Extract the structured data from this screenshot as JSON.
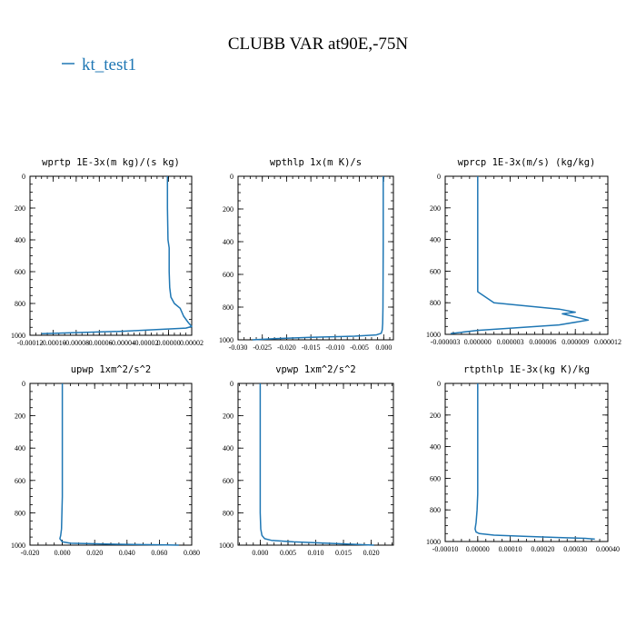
{
  "figure": {
    "title": "CLUBB VAR at90E,-75N",
    "legend": [
      {
        "label": "kt_test1",
        "color": "#1f77b4"
      }
    ]
  },
  "chart_data": [
    {
      "type": "line",
      "title": "wprtp  1E-3x(m kg)/(s kg)",
      "xlim": [
        -0.00012,
        2e-05
      ],
      "ylim": [
        1000,
        0
      ],
      "xticks": [
        -0.00012,
        -0.0001,
        -8e-05,
        -6e-05,
        -4e-05,
        -2e-05,
        0.0,
        2e-05
      ],
      "xtick_labels": [
        "-0.00012",
        "-0.00010",
        "-0.00008",
        "-0.00006",
        "-0.00004",
        "-0.00002",
        "0.00000",
        "0.00002"
      ],
      "yticks": [
        0,
        200,
        400,
        600,
        800,
        1000
      ],
      "ytick_labels": [
        "0",
        "200",
        "400",
        "600",
        "800",
        "1000"
      ],
      "series": [
        {
          "name": "kt_test1",
          "color": "#1f77b4",
          "x": [
            -1e-06,
            -1e-06,
            -5e-07,
            5e-07,
            5e-07,
            1e-06,
            2e-06,
            5e-06,
            1e-05,
            1.3e-05,
            1.7e-05,
            2e-05,
            1.5e-05,
            -4e-05,
            -0.00011
          ],
          "y": [
            0,
            200,
            400,
            450,
            600,
            700,
            760,
            800,
            830,
            880,
            920,
            945,
            955,
            975,
            990
          ]
        }
      ]
    },
    {
      "type": "line",
      "title": "wpthlp  1x(m K)/s",
      "xlim": [
        -0.03,
        0.002
      ],
      "ylim": [
        1000,
        0
      ],
      "xticks": [
        -0.03,
        -0.025,
        -0.02,
        -0.015,
        -0.01,
        -0.005,
        0.0
      ],
      "xtick_labels": [
        "-0.030",
        "-0.025",
        "-0.020",
        "-0.015",
        "-0.010",
        "-0.005",
        "0.000"
      ],
      "yticks": [
        0,
        200,
        400,
        600,
        800,
        1000
      ],
      "ytick_labels": [
        "0",
        "200",
        "400",
        "600",
        "800",
        "1000"
      ],
      "series": [
        {
          "name": "kt_test1",
          "color": "#1f77b4",
          "x": [
            -0.0001,
            -0.0001,
            -0.00015,
            -0.0002,
            -0.0003,
            -0.0005,
            -0.0015,
            -0.006,
            -0.015,
            -0.022,
            -0.027
          ],
          "y": [
            0,
            400,
            800,
            900,
            940,
            960,
            970,
            978,
            985,
            992,
            1000
          ]
        }
      ]
    },
    {
      "type": "line",
      "title": "wprcp  1E-3x(m/s) (kg/kg)",
      "xlim": [
        -3e-06,
        1.2e-05
      ],
      "ylim": [
        1000,
        0
      ],
      "xticks": [
        -3e-06,
        0.0,
        3e-06,
        6e-06,
        9e-06,
        1.2e-05
      ],
      "xtick_labels": [
        "-0.000003",
        "0.000000",
        "0.000003",
        "0.000006",
        "0.000009",
        "0.000012"
      ],
      "yticks": [
        0,
        200,
        400,
        600,
        800,
        1000
      ],
      "ytick_labels": [
        "0",
        "200",
        "400",
        "600",
        "800",
        "1000"
      ],
      "series": [
        {
          "name": "kt_test1",
          "color": "#1f77b4",
          "x": [
            0.0,
            0.0,
            0.0,
            2e-07,
            1.5e-06,
            7.5e-06,
            9e-06,
            7.8e-06,
            1.02e-05,
            7.5e-06,
            0.0,
            -2.5e-06
          ],
          "y": [
            0,
            700,
            730,
            740,
            800,
            840,
            860,
            870,
            910,
            940,
            975,
            995
          ]
        }
      ]
    },
    {
      "type": "line",
      "title": "upwp  1xm^2/s^2",
      "xlim": [
        -0.02,
        0.08
      ],
      "ylim": [
        1000,
        0
      ],
      "xticks": [
        -0.02,
        0.0,
        0.02,
        0.04,
        0.06,
        0.08
      ],
      "xtick_labels": [
        "-0.020",
        "0.000",
        "0.020",
        "0.040",
        "0.060",
        "0.080"
      ],
      "yticks": [
        0,
        200,
        400,
        600,
        800,
        1000
      ],
      "ytick_labels": [
        "0",
        "200",
        "400",
        "600",
        "800",
        "1000"
      ],
      "series": [
        {
          "name": "kt_test1",
          "color": "#1f77b4",
          "x": [
            0.0,
            0.0,
            -0.0005,
            -0.001,
            -0.0015,
            0.0,
            0.005,
            0.03,
            0.06,
            0.072
          ],
          "y": [
            0,
            700,
            900,
            940,
            960,
            980,
            988,
            994,
            998,
            1000
          ]
        }
      ]
    },
    {
      "type": "line",
      "title": "vpwp  1xm^2/s^2",
      "xlim": [
        -0.004,
        0.024
      ],
      "ylim": [
        1000,
        0
      ],
      "xticks": [
        0.0,
        0.005,
        0.01,
        0.015,
        0.02
      ],
      "xtick_labels": [
        "0.000",
        "0.005",
        "0.010",
        "0.015",
        "0.020"
      ],
      "yticks": [
        0,
        200,
        400,
        600,
        800,
        1000
      ],
      "ytick_labels": [
        "0",
        "200",
        "400",
        "600",
        "800",
        "1000"
      ],
      "series": [
        {
          "name": "kt_test1",
          "color": "#1f77b4",
          "x": [
            0.0,
            0.0,
            0.0001,
            0.0003,
            0.0008,
            0.002,
            0.006,
            0.012,
            0.017,
            0.0205
          ],
          "y": [
            0,
            800,
            900,
            940,
            960,
            970,
            980,
            988,
            995,
            1000
          ]
        }
      ]
    },
    {
      "type": "line",
      "title": "rtpthlp  1E-3x(kg K)/kg",
      "xlim": [
        -0.0001,
        0.0004
      ],
      "ylim": [
        1000,
        0
      ],
      "xticks": [
        -0.0001,
        0.0,
        0.0001,
        0.0002,
        0.0003,
        0.0004
      ],
      "xtick_labels": [
        "-0.00010",
        "0.00000",
        "0.00010",
        "0.00020",
        "0.00030",
        "0.00040"
      ],
      "yticks": [
        0,
        200,
        400,
        600,
        800,
        1000
      ],
      "ytick_labels": [
        "0",
        "200",
        "400",
        "600",
        "800",
        "1000"
      ],
      "series": [
        {
          "name": "kt_test1",
          "color": "#1f77b4",
          "x": [
            0.0,
            0.0,
            -2e-06,
            -5e-06,
            -8e-06,
            -5e-06,
            5e-06,
            5e-05,
            0.00015,
            0.00025,
            0.00033,
            0.00036
          ],
          "y": [
            0,
            700,
            800,
            880,
            920,
            940,
            950,
            960,
            968,
            975,
            980,
            985
          ]
        }
      ]
    }
  ]
}
